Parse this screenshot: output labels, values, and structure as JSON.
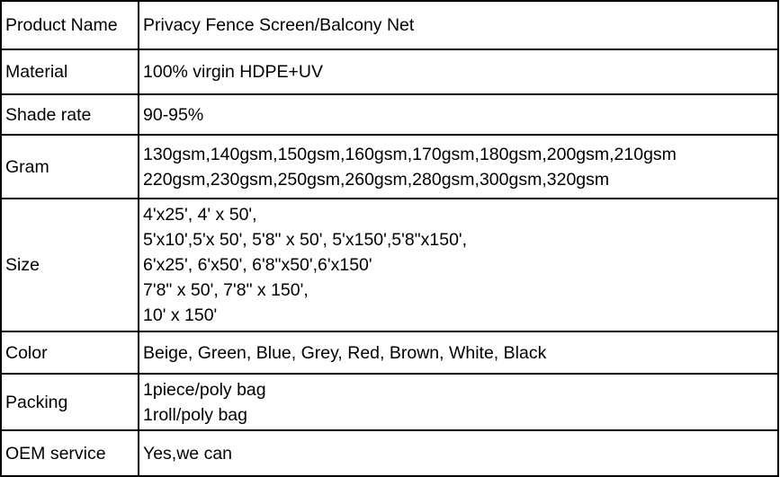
{
  "rows": [
    {
      "label": "Product Name",
      "lines": [
        "Privacy Fence Screen/Balcony Net"
      ]
    },
    {
      "label": "Material",
      "lines": [
        "100% virgin HDPE+UV"
      ]
    },
    {
      "label": "Shade rate",
      "lines": [
        "90-95%"
      ]
    },
    {
      "label": "Gram",
      "lines": [
        "130gsm,140gsm,150gsm,160gsm,170gsm,180gsm,200gsm,210gsm",
        "220gsm,230gsm,250gsm,260gsm,280gsm,300gsm,320gsm"
      ]
    },
    {
      "label": "Size",
      "lines": [
        "4'x25', 4' x 50',",
        "5'x10',5'x 50', 5'8\" x 50', 5'x150',5'8\"x150',",
        "6'x25', 6'x50', 6'8\"x50',6'x150'",
        "7'8\" x 50', 7'8\" x 150',",
        "10' x 150'"
      ]
    },
    {
      "label": "Color",
      "lines": [
        "Beige, Green, Blue, Grey, Red, Brown, White, Black"
      ]
    },
    {
      "label": "Packing",
      "lines": [
        "1piece/poly bag",
        "1roll/poly bag"
      ]
    },
    {
      "label": "OEM service",
      "lines": [
        "Yes,we can"
      ]
    }
  ]
}
